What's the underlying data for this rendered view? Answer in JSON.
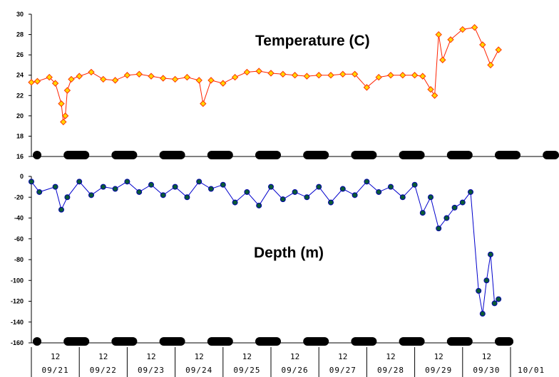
{
  "chart_data": [
    {
      "type": "scatter",
      "title": "Temperature (C)",
      "ylim": [
        16,
        30
      ],
      "yticks": [
        "30",
        "28",
        "26",
        "24",
        "22",
        "20",
        "18",
        "16"
      ],
      "colors": {
        "marker_fill": "#ffd700",
        "marker_stroke": "#ff3300",
        "line": "#ff2200"
      },
      "series": [
        {
          "x": [
            "09/21 00:00",
            "09/21 03:00",
            "09/21 09:00",
            "09/21 12:00",
            "09/21 15:00",
            "09/21 16:00",
            "09/21 17:00",
            "09/21 18:00",
            "09/21 20:00",
            "09/22 00:00",
            "09/22 06:00",
            "09/22 12:00",
            "09/22 18:00",
            "09/23 00:00",
            "09/23 06:00",
            "09/23 12:00",
            "09/23 18:00",
            "09/24 00:00",
            "09/24 06:00",
            "09/24 12:00",
            "09/24 14:00",
            "09/24 18:00",
            "09/25 00:00",
            "09/25 06:00",
            "09/25 12:00",
            "09/25 18:00",
            "09/26 00:00",
            "09/26 06:00",
            "09/26 12:00",
            "09/26 18:00",
            "09/27 00:00",
            "09/27 06:00",
            "09/27 12:00",
            "09/27 18:00",
            "09/28 00:00",
            "09/28 06:00",
            "09/28 12:00",
            "09/28 18:00",
            "09/29 00:00",
            "09/29 04:00",
            "09/29 08:00",
            "09/29 10:00",
            "09/29 12:00",
            "09/29 14:00",
            "09/29 18:00",
            "09/30 00:00",
            "09/30 06:00",
            "09/30 10:00",
            "09/30 14:00",
            "09/30 18:00"
          ],
          "y": [
            23.3,
            23.4,
            23.8,
            23.2,
            21.2,
            19.4,
            20.0,
            22.5,
            23.6,
            23.9,
            24.3,
            23.6,
            23.5,
            24.0,
            24.1,
            23.9,
            23.7,
            23.6,
            23.8,
            23.5,
            21.2,
            23.5,
            23.2,
            23.8,
            24.3,
            24.4,
            24.2,
            24.1,
            24.0,
            23.9,
            24.0,
            24.0,
            24.1,
            24.1,
            22.8,
            23.8,
            24.0,
            24.0,
            24.0,
            23.9,
            22.6,
            22.0,
            28.0,
            25.5,
            27.5,
            28.5,
            28.7,
            27.0,
            25.0,
            26.5
          ]
        }
      ]
    },
    {
      "type": "scatter",
      "title": "Depth (m)",
      "ylim": [
        -160,
        0
      ],
      "yticks": [
        "0",
        "-20",
        "-40",
        "-60",
        "-80",
        "-100",
        "-120",
        "-140",
        "-160"
      ],
      "colors": {
        "marker_fill": "#0a5a36",
        "marker_stroke": "#0000aa",
        "line": "#0000cc"
      },
      "series": [
        {
          "x": [
            "09/21 00:00",
            "09/21 04:00",
            "09/21 12:00",
            "09/21 15:00",
            "09/21 18:00",
            "09/22 00:00",
            "09/22 06:00",
            "09/22 12:00",
            "09/22 18:00",
            "09/23 00:00",
            "09/23 06:00",
            "09/23 12:00",
            "09/23 18:00",
            "09/24 00:00",
            "09/24 06:00",
            "09/24 12:00",
            "09/24 18:00",
            "09/25 00:00",
            "09/25 06:00",
            "09/25 12:00",
            "09/25 18:00",
            "09/26 00:00",
            "09/26 06:00",
            "09/26 12:00",
            "09/26 18:00",
            "09/27 00:00",
            "09/27 06:00",
            "09/27 12:00",
            "09/27 18:00",
            "09/28 00:00",
            "09/28 06:00",
            "09/28 12:00",
            "09/28 18:00",
            "09/29 00:00",
            "09/29 04:00",
            "09/29 08:00",
            "09/29 12:00",
            "09/29 16:00",
            "09/29 20:00",
            "09/30 00:00",
            "09/30 04:00",
            "09/30 08:00",
            "09/30 10:00",
            "09/30 12:00",
            "09/30 14:00",
            "09/30 16:00",
            "09/30 18:00"
          ],
          "y": [
            -5,
            -15,
            -10,
            -32,
            -20,
            -5,
            -18,
            -10,
            -12,
            -5,
            -15,
            -8,
            -18,
            -10,
            -20,
            -5,
            -12,
            -8,
            -25,
            -15,
            -28,
            -10,
            -22,
            -15,
            -20,
            -10,
            -25,
            -12,
            -18,
            -5,
            -15,
            -10,
            -20,
            -8,
            -35,
            -20,
            -50,
            -40,
            -30,
            -25,
            -15,
            -110,
            -132,
            -100,
            -75,
            -122,
            -118
          ]
        }
      ]
    }
  ],
  "x_axis": {
    "hour_label": "12",
    "dates": [
      "09/21",
      "09/22",
      "09/23",
      "09/24",
      "09/25",
      "09/26",
      "09/27",
      "09/28",
      "09/29",
      "09/30",
      "10/01"
    ]
  }
}
